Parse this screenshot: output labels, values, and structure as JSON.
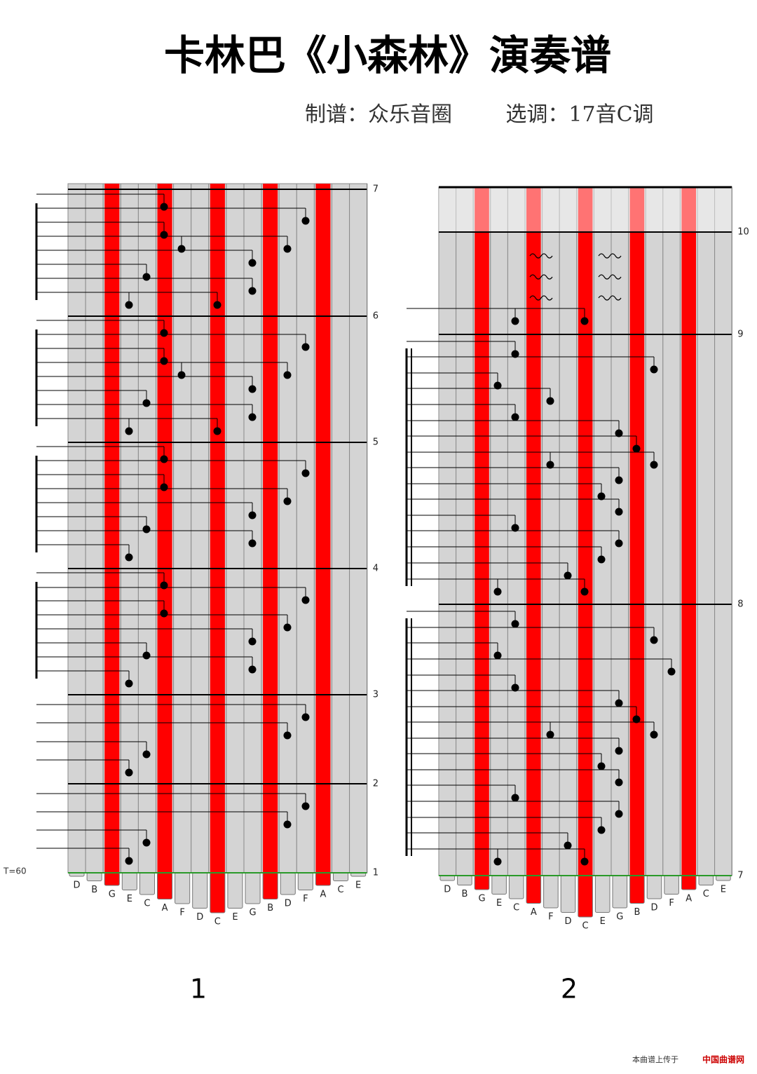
{
  "header": {
    "title": "卡林巴《小森林》演奏谱",
    "arranger": "制谱：众乐音圈",
    "key": "选调：17音C调"
  },
  "tempo": "T=60",
  "panels": [
    {
      "keys": [
        "D",
        "B",
        "G",
        "E",
        "C",
        "A",
        "F",
        "D",
        "C",
        "E",
        "G",
        "B",
        "D",
        "F",
        "A",
        "C",
        "E"
      ],
      "measures": [
        1,
        2,
        3,
        4,
        5,
        6,
        7
      ],
      "page_number": "1"
    },
    {
      "keys": [
        "D",
        "B",
        "G",
        "E",
        "C",
        "A",
        "F",
        "D",
        "C",
        "E",
        "G",
        "B",
        "D",
        "F",
        "A",
        "C",
        "E"
      ],
      "measures": [
        7,
        8,
        9,
        10
      ],
      "page_number": "2"
    }
  ],
  "footer": {
    "upload": "本曲谱上传于",
    "site": "中国曲谱网"
  }
}
